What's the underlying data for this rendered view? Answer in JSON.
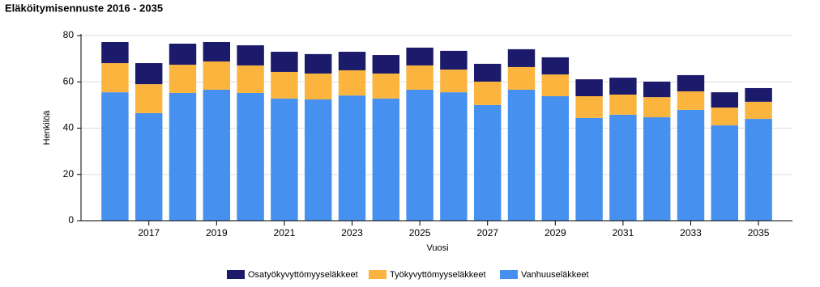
{
  "chart_data": {
    "type": "stacked_bar",
    "title": "Eläköitymisennuste  2016 - 2035",
    "x_label": "Vuosi",
    "y_label": "Henkilöä",
    "categories": [
      null,
      "2017",
      null,
      "2019",
      null,
      "2021",
      null,
      "2023",
      null,
      "2025",
      null,
      "2027",
      null,
      "2029",
      null,
      "2031",
      null,
      "2033",
      null,
      "2035"
    ],
    "series": [
      {
        "name": "Osatyökyvyttömyyseläkkeet",
        "color": "#1b1a6b",
        "values": [
          9.1,
          9.1,
          9.1,
          8.4,
          8.7,
          8.7,
          8.4,
          8.0,
          8.0,
          7.7,
          8.1,
          7.7,
          7.7,
          7.4,
          7.3,
          7.3,
          6.7,
          7.0,
          6.6,
          5.9
        ]
      },
      {
        "name": "Työkyvyttömyyseläkkeet",
        "color": "#fbb43d",
        "values": [
          12.6,
          12.5,
          12.2,
          12.2,
          11.9,
          11.5,
          11.2,
          10.9,
          10.8,
          10.5,
          9.8,
          10.1,
          9.8,
          9.4,
          9.4,
          8.7,
          8.7,
          8.0,
          7.7,
          7.4
        ]
      },
      {
        "name": "Vanhuuseläkkeet",
        "color": "#4690ef",
        "values": [
          55.5,
          46.5,
          55.2,
          56.6,
          55.2,
          52.8,
          52.4,
          54.1,
          52.8,
          56.6,
          55.5,
          50.0,
          56.6,
          53.8,
          44.4,
          45.8,
          44.7,
          47.9,
          41.2,
          44.0
        ]
      }
    ],
    "ylim": [
      0,
      80
    ],
    "yticks": [
      0,
      20,
      40,
      60,
      80
    ],
    "grid": true
  }
}
